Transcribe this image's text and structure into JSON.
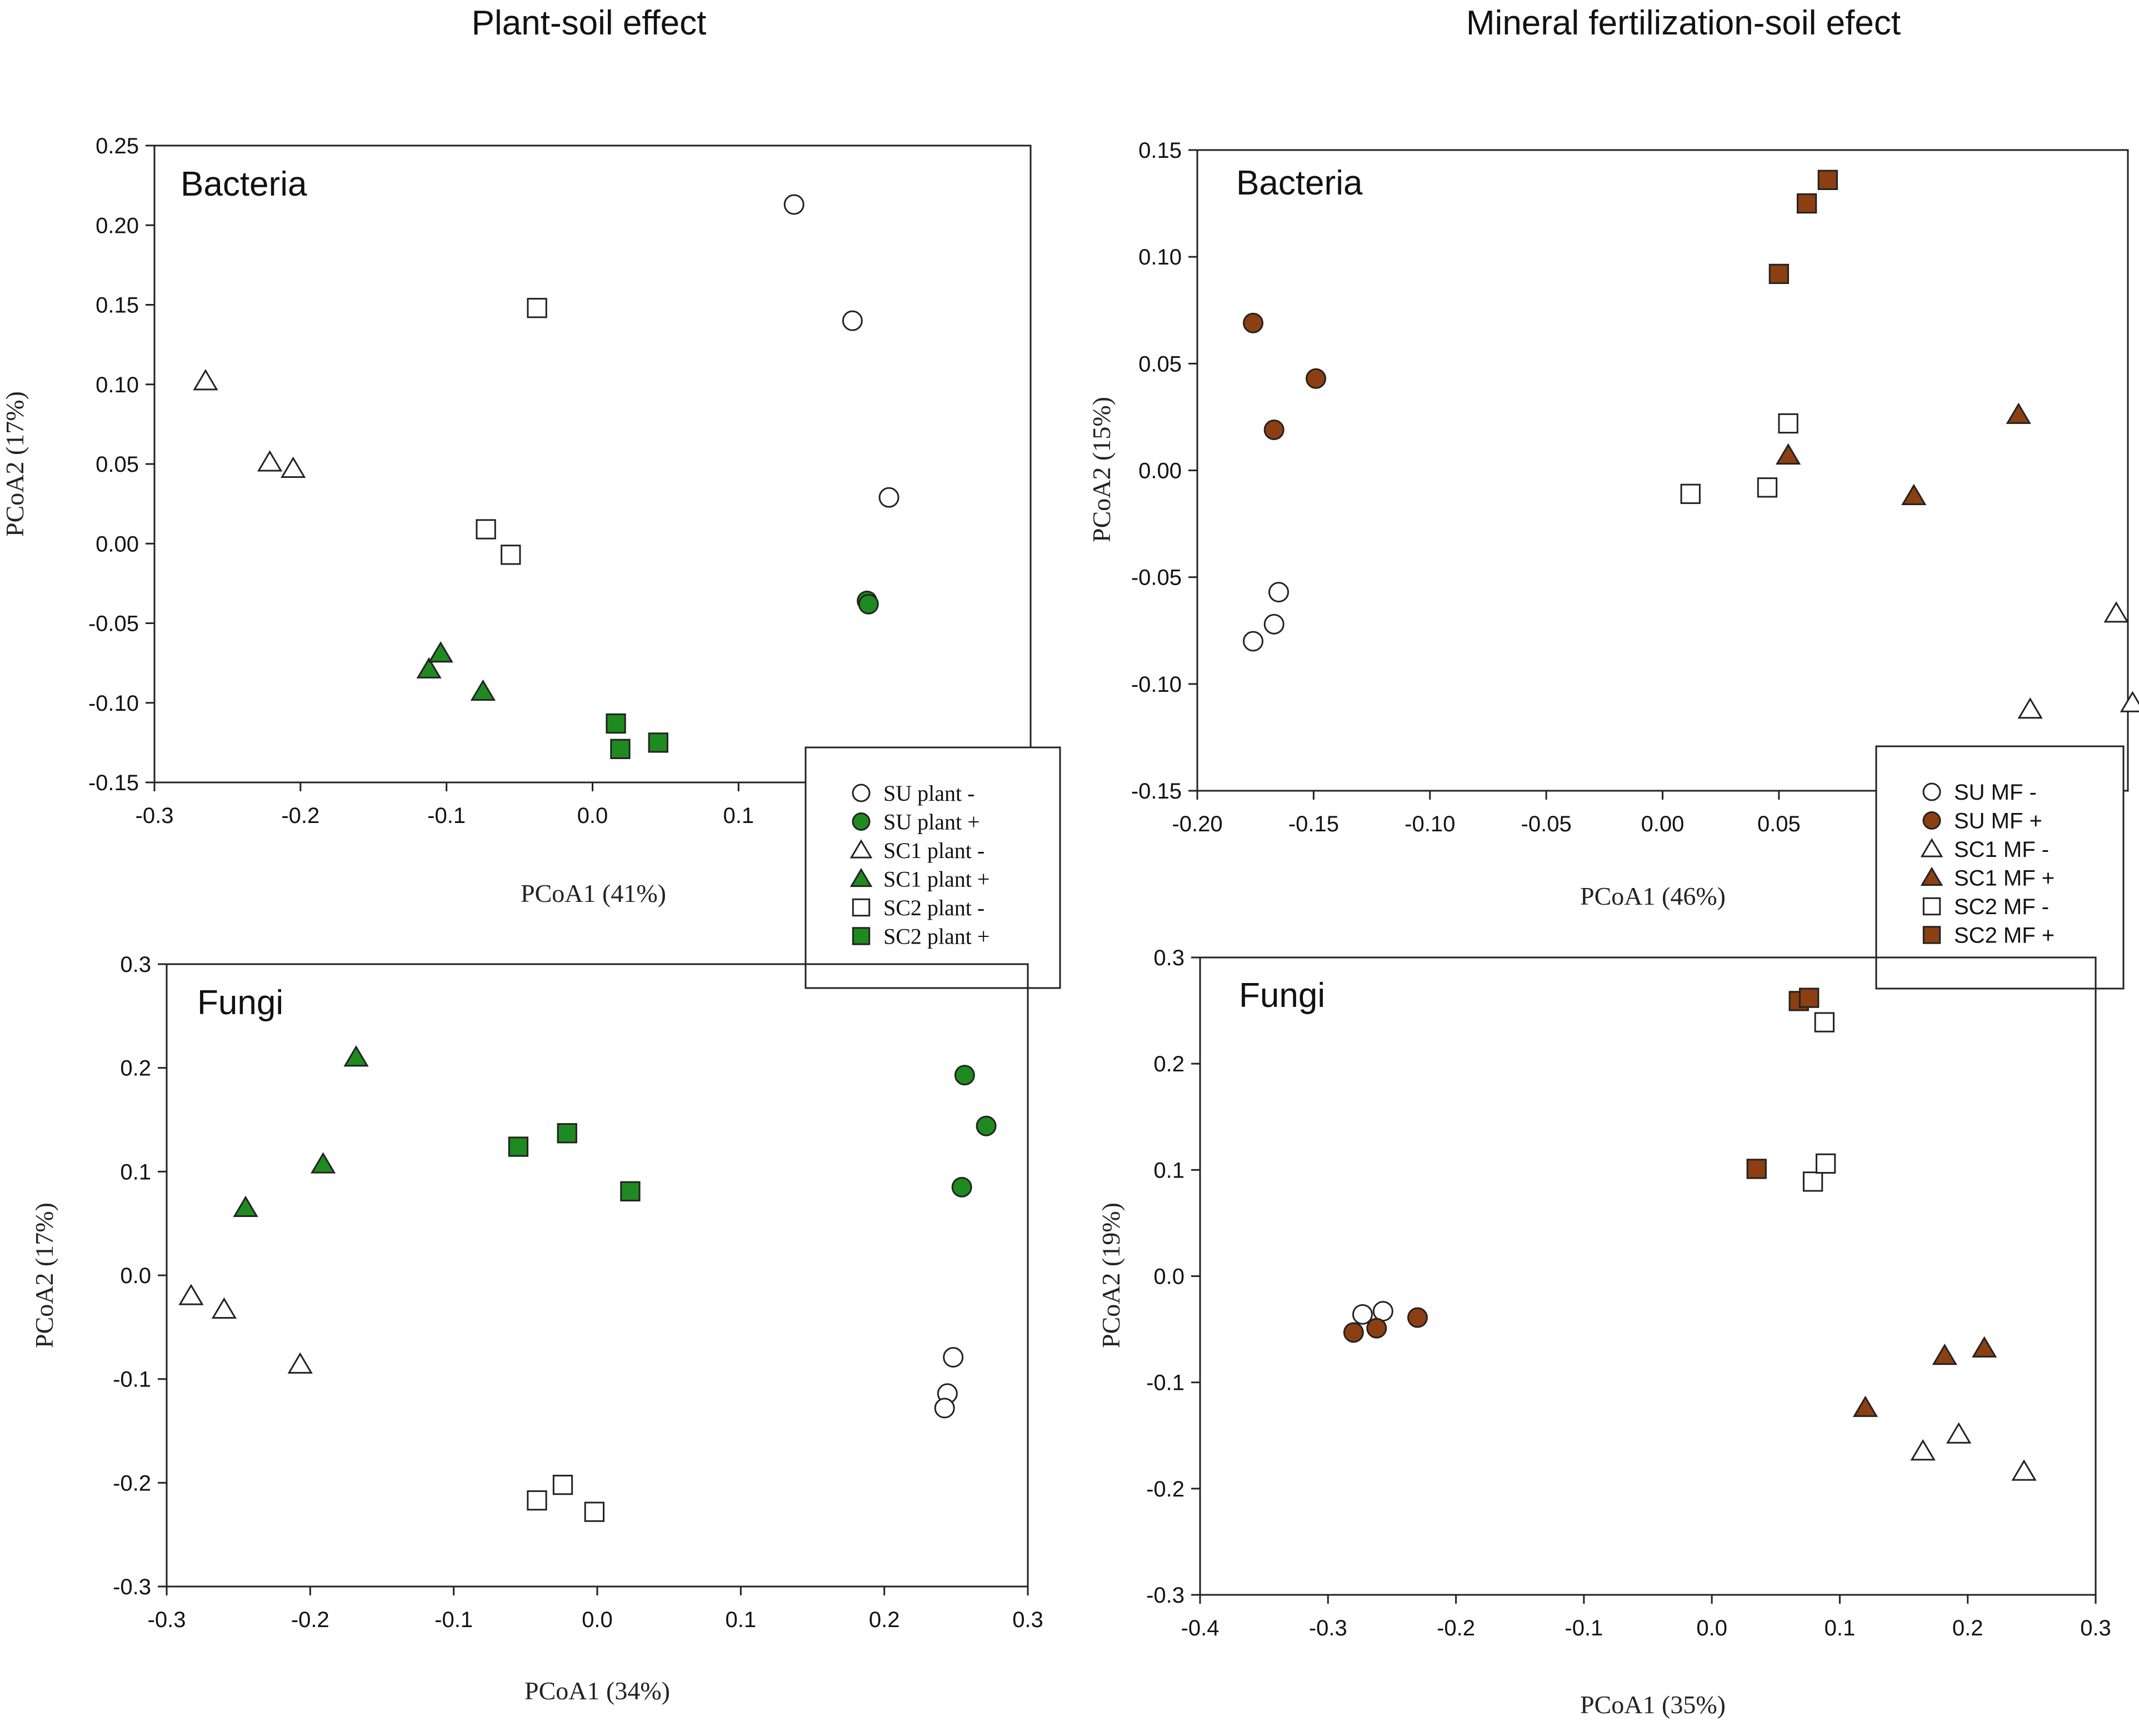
{
  "headers": {
    "left": "Plant-soil effect",
    "right": "Mineral fertilization-soil efect"
  },
  "colors": {
    "green": "#1f8a1f",
    "brown": "#8b3f12",
    "open": "#ffffff",
    "stroke": "#222222"
  },
  "chart_data": [
    {
      "id": "plant-bacteria",
      "type": "scatter",
      "title": "Bacteria",
      "xlabel": "PCoA1 (41%)",
      "ylabel": "PCoA2 (17%)",
      "xlim": [
        -0.3,
        0.3
      ],
      "ylim": [
        -0.15,
        0.25
      ],
      "xticks": [
        -0.3,
        -0.2,
        -0.1,
        0.0,
        0.1
      ],
      "xtick_labels": [
        "-0.3",
        "-0.2",
        "-0.1",
        "0.0",
        "0.1"
      ],
      "yticks": [
        -0.15,
        -0.1,
        -0.05,
        0.0,
        0.05,
        0.1,
        0.15,
        0.2,
        0.25
      ],
      "ytick_labels": [
        "-0.15",
        "-0.10",
        "-0.05",
        "0.00",
        "0.05",
        "0.10",
        "0.15",
        "0.20",
        "0.25"
      ],
      "legend": {
        "position": "bottom-right",
        "entries": [
          {
            "label": "SU plant -",
            "marker": "circle",
            "fill": "open"
          },
          {
            "label": "SU plant +",
            "marker": "circle",
            "fill": "green"
          },
          {
            "label": "SC1 plant -",
            "marker": "triangle",
            "fill": "open"
          },
          {
            "label": "SC1 plant +",
            "marker": "triangle",
            "fill": "green"
          },
          {
            "label": "SC2 plant -",
            "marker": "square",
            "fill": "open"
          },
          {
            "label": "SC2 plant +",
            "marker": "square",
            "fill": "green"
          }
        ]
      },
      "series": [
        {
          "name": "SU plant -",
          "marker": "circle",
          "fill": "open",
          "points": [
            [
              0.138,
              0.213
            ],
            [
              0.178,
              0.14
            ],
            [
              0.203,
              0.029
            ]
          ]
        },
        {
          "name": "SU plant +",
          "marker": "circle",
          "fill": "green",
          "points": [
            [
              0.188,
              -0.036
            ],
            [
              0.189,
              -0.038
            ]
          ]
        },
        {
          "name": "SC1 plant -",
          "marker": "triangle",
          "fill": "open",
          "points": [
            [
              -0.265,
              0.102
            ],
            [
              -0.221,
              0.051
            ],
            [
              -0.205,
              0.047
            ]
          ]
        },
        {
          "name": "SC1 plant +",
          "marker": "triangle",
          "fill": "green",
          "points": [
            [
              -0.112,
              -0.079
            ],
            [
              -0.104,
              -0.069
            ],
            [
              -0.075,
              -0.093
            ]
          ]
        },
        {
          "name": "SC2 plant -",
          "marker": "square",
          "fill": "open",
          "points": [
            [
              -0.038,
              0.148
            ],
            [
              -0.073,
              0.009
            ],
            [
              -0.056,
              -0.007
            ]
          ]
        },
        {
          "name": "SC2 plant +",
          "marker": "square",
          "fill": "green",
          "points": [
            [
              0.016,
              -0.113
            ],
            [
              0.019,
              -0.129
            ],
            [
              0.045,
              -0.125
            ]
          ]
        }
      ]
    },
    {
      "id": "plant-fungi",
      "type": "scatter",
      "title": "Fungi",
      "xlabel": "PCoA1 (34%)",
      "ylabel": "PCoA2 (17%)",
      "xlim": [
        -0.3,
        0.3
      ],
      "ylim": [
        -0.3,
        0.3
      ],
      "xticks": [
        -0.3,
        -0.2,
        -0.1,
        0.0,
        0.1,
        0.2,
        0.3
      ],
      "xtick_labels": [
        "-0.3",
        "-0.2",
        "-0.1",
        "0.0",
        "0.1",
        "0.2",
        "0.3"
      ],
      "yticks": [
        -0.3,
        -0.2,
        -0.1,
        0.0,
        0.1,
        0.2,
        0.3
      ],
      "ytick_labels": [
        "-0.3",
        "-0.2",
        "-0.1",
        "0.0",
        "0.1",
        "0.2",
        "0.3"
      ],
      "series": [
        {
          "name": "SU plant -",
          "marker": "circle",
          "fill": "open",
          "points": [
            [
              0.248,
              -0.079
            ],
            [
              0.244,
              -0.114
            ],
            [
              0.242,
              -0.128
            ]
          ]
        },
        {
          "name": "SU plant +",
          "marker": "circle",
          "fill": "green",
          "points": [
            [
              0.256,
              0.193
            ],
            [
              0.271,
              0.144
            ],
            [
              0.254,
              0.085
            ]
          ]
        },
        {
          "name": "SC1 plant -",
          "marker": "triangle",
          "fill": "open",
          "points": [
            [
              -0.283,
              -0.02
            ],
            [
              -0.26,
              -0.033
            ],
            [
              -0.207,
              -0.086
            ]
          ]
        },
        {
          "name": "SC1 plant +",
          "marker": "triangle",
          "fill": "green",
          "points": [
            [
              -0.168,
              0.21
            ],
            [
              -0.191,
              0.107
            ],
            [
              -0.245,
              0.065
            ]
          ]
        },
        {
          "name": "SC2 plant -",
          "marker": "square",
          "fill": "open",
          "points": [
            [
              -0.042,
              -0.217
            ],
            [
              -0.024,
              -0.202
            ],
            [
              -0.002,
              -0.228
            ]
          ]
        },
        {
          "name": "SC2 plant +",
          "marker": "square",
          "fill": "green",
          "points": [
            [
              -0.055,
              0.124
            ],
            [
              -0.021,
              0.137
            ],
            [
              0.023,
              0.081
            ]
          ]
        }
      ]
    },
    {
      "id": "mf-bacteria",
      "type": "scatter",
      "title": "Bacteria",
      "xlabel": "PCoA1 (46%)",
      "ylabel": "PCoA2 (15%)",
      "xlim": [
        -0.2,
        0.2
      ],
      "ylim": [
        -0.15,
        0.15
      ],
      "xticks": [
        -0.2,
        -0.15,
        -0.1,
        -0.05,
        0.0,
        0.05
      ],
      "xtick_labels": [
        "-0.20",
        "-0.15",
        "-0.10",
        "-0.05",
        "0.00",
        "0.05"
      ],
      "yticks": [
        -0.15,
        -0.1,
        -0.05,
        0.0,
        0.05,
        0.1,
        0.15
      ],
      "ytick_labels": [
        "-0.15",
        "-0.10",
        "-0.05",
        "0.00",
        "0.05",
        "0.10",
        "0.15"
      ],
      "legend": {
        "position": "bottom-right",
        "entries": [
          {
            "label": "SU  MF -",
            "marker": "circle",
            "fill": "open"
          },
          {
            "label": "SU  MF +",
            "marker": "circle",
            "fill": "brown"
          },
          {
            "label": "SC1  MF -",
            "marker": "triangle",
            "fill": "open"
          },
          {
            "label": "SC1  MF +",
            "marker": "triangle",
            "fill": "brown"
          },
          {
            "label": "SC2  MF -",
            "marker": "square",
            "fill": "open"
          },
          {
            "label": "SC2  MF +",
            "marker": "square",
            "fill": "brown"
          }
        ]
      },
      "series": [
        {
          "name": "SU MF -",
          "marker": "circle",
          "fill": "open",
          "points": [
            [
              -0.176,
              -0.08
            ],
            [
              -0.167,
              -0.072
            ],
            [
              -0.165,
              -0.057
            ]
          ]
        },
        {
          "name": "SU MF +",
          "marker": "circle",
          "fill": "brown",
          "points": [
            [
              -0.176,
              0.069
            ],
            [
              -0.167,
              0.019
            ],
            [
              -0.149,
              0.043
            ]
          ]
        },
        {
          "name": "SC1 MF -",
          "marker": "triangle",
          "fill": "open",
          "points": [
            [
              0.158,
              -0.112
            ],
            [
              0.195,
              -0.067
            ],
            [
              0.202,
              -0.109
            ]
          ]
        },
        {
          "name": "SC1 MF +",
          "marker": "triangle",
          "fill": "brown",
          "points": [
            [
              0.054,
              0.007
            ],
            [
              0.108,
              -0.012
            ],
            [
              0.153,
              0.026
            ]
          ]
        },
        {
          "name": "SC2 MF -",
          "marker": "square",
          "fill": "open",
          "points": [
            [
              0.012,
              -0.011
            ],
            [
              0.045,
              -0.008
            ],
            [
              0.054,
              0.022
            ]
          ]
        },
        {
          "name": "SC2 MF +",
          "marker": "square",
          "fill": "brown",
          "points": [
            [
              0.05,
              0.092
            ],
            [
              0.062,
              0.125
            ],
            [
              0.071,
              0.136
            ]
          ]
        }
      ]
    },
    {
      "id": "mf-fungi",
      "type": "scatter",
      "title": "Fungi",
      "xlabel": "PCoA1 (35%)",
      "ylabel": "PCoA2 (19%)",
      "xlim": [
        -0.4,
        0.3
      ],
      "ylim": [
        -0.3,
        0.3
      ],
      "xticks": [
        -0.4,
        -0.3,
        -0.2,
        -0.1,
        0.0,
        0.1,
        0.2,
        0.3
      ],
      "xtick_labels": [
        "-0.4",
        "-0.3",
        "-0.2",
        "-0.1",
        "0.0",
        "0.1",
        "0.2",
        "0.3"
      ],
      "yticks": [
        -0.3,
        -0.2,
        -0.1,
        0.0,
        0.1,
        0.2,
        0.3
      ],
      "ytick_labels": [
        "-0.3",
        "-0.2",
        "-0.1",
        "0.0",
        "0.1",
        "0.2",
        "0.3"
      ],
      "series": [
        {
          "name": "SU MF -",
          "marker": "circle",
          "fill": "open",
          "points": [
            [
              -0.273,
              -0.036
            ],
            [
              -0.257,
              -0.033
            ]
          ]
        },
        {
          "name": "SU MF +",
          "marker": "circle",
          "fill": "brown",
          "points": [
            [
              -0.28,
              -0.053
            ],
            [
              -0.262,
              -0.049
            ],
            [
              -0.23,
              -0.039
            ]
          ]
        },
        {
          "name": "SC1 MF -",
          "marker": "triangle",
          "fill": "open",
          "points": [
            [
              0.165,
              -0.165
            ],
            [
              0.193,
              -0.149
            ],
            [
              0.244,
              -0.184
            ]
          ]
        },
        {
          "name": "SC1 MF +",
          "marker": "triangle",
          "fill": "brown",
          "points": [
            [
              0.12,
              -0.124
            ],
            [
              0.182,
              -0.075
            ],
            [
              0.213,
              -0.068
            ]
          ]
        },
        {
          "name": "SC2 MF -",
          "marker": "square",
          "fill": "open",
          "points": [
            [
              0.088,
              0.239
            ],
            [
              0.079,
              0.089
            ],
            [
              0.089,
              0.106
            ]
          ]
        },
        {
          "name": "SC2 MF +",
          "marker": "square",
          "fill": "brown",
          "points": [
            [
              0.068,
              0.259
            ],
            [
              0.076,
              0.262
            ],
            [
              0.035,
              0.101
            ]
          ]
        }
      ]
    }
  ]
}
